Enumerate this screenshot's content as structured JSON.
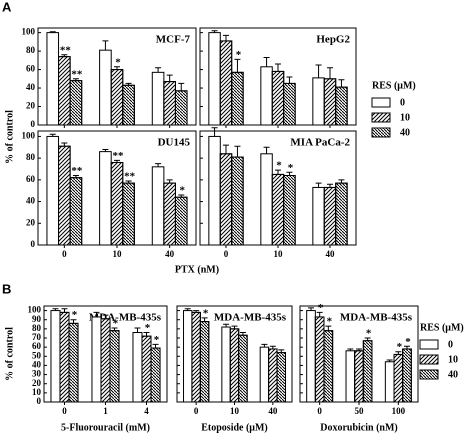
{
  "panels": [
    {
      "label": "A",
      "ylabel": "% of control",
      "xlabel": "PTX (nM)",
      "legend": {
        "title": "RES (μM)",
        "entries": [
          {
            "name": "0",
            "color": "#ffffff",
            "pattern": "none"
          },
          {
            "name": "10",
            "color": "#ffffff",
            "pattern": "forward"
          },
          {
            "name": "40",
            "color": "#ffffff",
            "pattern": "back"
          }
        ]
      }
    },
    {
      "label": "B",
      "ylabel": "% of control",
      "legend": {
        "title": "RES (μM)",
        "entries": [
          {
            "name": "0",
            "color": "#ffffff",
            "pattern": "none"
          },
          {
            "name": "10",
            "color": "#ffffff",
            "pattern": "forward"
          },
          {
            "name": "40",
            "color": "#ffffff",
            "pattern": "back"
          }
        ]
      }
    }
  ],
  "chart_data": [
    {
      "type": "bar",
      "title": "MCF-7",
      "ylim": [
        0,
        105
      ],
      "yticks": [
        0,
        20,
        40,
        60,
        80,
        100
      ],
      "series": [
        {
          "values": [
            100,
            81,
            57
          ],
          "errors": [
            1,
            10,
            5
          ],
          "annotations": [
            null,
            null,
            null
          ]
        },
        {
          "values": [
            74,
            60,
            47
          ],
          "errors": [
            2,
            3,
            7
          ],
          "annotations": [
            "**",
            "*",
            null
          ]
        },
        {
          "values": [
            48,
            43,
            37
          ],
          "errors": [
            2,
            2,
            8
          ],
          "annotations": [
            "**",
            null,
            null
          ]
        }
      ]
    },
    {
      "type": "bar",
      "title": "HepG2",
      "ylim": [
        0,
        105
      ],
      "yticks": [
        0,
        20,
        40,
        60,
        80,
        100
      ],
      "series": [
        {
          "values": [
            100,
            63,
            51
          ],
          "errors": [
            2,
            10,
            14
          ],
          "annotations": [
            null,
            null,
            null
          ]
        },
        {
          "values": [
            91,
            58,
            50
          ],
          "errors": [
            6,
            8,
            12
          ],
          "annotations": [
            null,
            null,
            null
          ]
        },
        {
          "values": [
            57,
            45,
            41
          ],
          "errors": [
            14,
            7,
            8
          ],
          "annotations": [
            "*",
            null,
            null
          ]
        }
      ]
    },
    {
      "type": "bar",
      "title": "DU145",
      "ylim": [
        0,
        105
      ],
      "yticks": [
        0,
        20,
        40,
        60,
        80,
        100
      ],
      "categories": [
        "0",
        "10",
        "40"
      ],
      "series": [
        {
          "values": [
            100,
            86,
            72
          ],
          "errors": [
            2,
            2,
            3
          ],
          "annotations": [
            null,
            null,
            null
          ]
        },
        {
          "values": [
            91,
            76,
            57
          ],
          "errors": [
            3,
            2,
            3
          ],
          "annotations": [
            null,
            "**",
            null
          ]
        },
        {
          "values": [
            62,
            57,
            44
          ],
          "errors": [
            2,
            2,
            2
          ],
          "annotations": [
            "**",
            "**",
            "*"
          ]
        }
      ]
    },
    {
      "type": "bar",
      "title": "MIA PaCa-2",
      "ylim": [
        0,
        105
      ],
      "yticks": [
        0,
        20,
        40,
        60,
        80,
        100
      ],
      "categories": [
        "0",
        "10",
        "40"
      ],
      "series": [
        {
          "values": [
            100,
            84,
            53
          ],
          "errors": [
            8,
            6,
            4
          ],
          "annotations": [
            null,
            null,
            null
          ]
        },
        {
          "values": [
            84,
            65,
            53
          ],
          "errors": [
            8,
            4,
            3
          ],
          "annotations": [
            null,
            "*",
            null
          ]
        },
        {
          "values": [
            81,
            64,
            57
          ],
          "errors": [
            10,
            3,
            3
          ],
          "annotations": [
            null,
            "*",
            null
          ]
        }
      ]
    },
    {
      "type": "bar",
      "title": "MDA-MB-435s",
      "xlabel": "5-Fluorouracil (mM)",
      "ylim": [
        0,
        105
      ],
      "yticks": [
        0,
        10,
        20,
        30,
        40,
        50,
        60,
        70,
        80,
        90,
        100
      ],
      "categories": [
        "0",
        "1",
        "4"
      ],
      "series": [
        {
          "values": [
            100,
            93,
            76
          ],
          "errors": [
            2,
            5,
            5
          ],
          "annotations": [
            null,
            null,
            null
          ]
        },
        {
          "values": [
            98,
            91,
            72
          ],
          "errors": [
            4,
            4,
            4
          ],
          "annotations": [
            null,
            null,
            "*"
          ]
        },
        {
          "values": [
            86,
            78,
            59
          ],
          "errors": [
            4,
            3,
            4
          ],
          "annotations": [
            "*",
            "*",
            "*"
          ]
        }
      ]
    },
    {
      "type": "bar",
      "title": "MDA-MB-435s",
      "xlabel": "Etoposide (μM)",
      "ylim": [
        0,
        105
      ],
      "yticks": [
        0,
        10,
        20,
        30,
        40,
        50,
        60,
        70,
        80,
        90,
        100
      ],
      "categories": [
        "0",
        "10",
        "40"
      ],
      "series": [
        {
          "values": [
            100,
            82,
            60
          ],
          "errors": [
            2,
            3,
            3
          ],
          "annotations": [
            null,
            null,
            null
          ]
        },
        {
          "values": [
            98,
            80,
            58
          ],
          "errors": [
            2,
            3,
            3
          ],
          "annotations": [
            null,
            null,
            null
          ]
        },
        {
          "values": [
            88,
            73,
            54
          ],
          "errors": [
            4,
            3,
            3
          ],
          "annotations": [
            "*",
            null,
            null
          ]
        }
      ]
    },
    {
      "type": "bar",
      "title": "MDA-MB-435s",
      "xlabel": "Doxorubicin (nM)",
      "ylim": [
        0,
        105
      ],
      "yticks": [
        0,
        10,
        20,
        30,
        40,
        50,
        60,
        70,
        80,
        90,
        100
      ],
      "categories": [
        "0",
        "50",
        "100"
      ],
      "series": [
        {
          "values": [
            100,
            56,
            44
          ],
          "errors": [
            3,
            2,
            2
          ],
          "annotations": [
            null,
            null,
            null
          ]
        },
        {
          "values": [
            93,
            56,
            52
          ],
          "errors": [
            5,
            2,
            3
          ],
          "annotations": [
            "*",
            null,
            "*"
          ]
        },
        {
          "values": [
            78,
            67,
            58
          ],
          "errors": [
            5,
            3,
            3
          ],
          "annotations": [
            "*",
            "*",
            "*"
          ]
        }
      ]
    }
  ]
}
